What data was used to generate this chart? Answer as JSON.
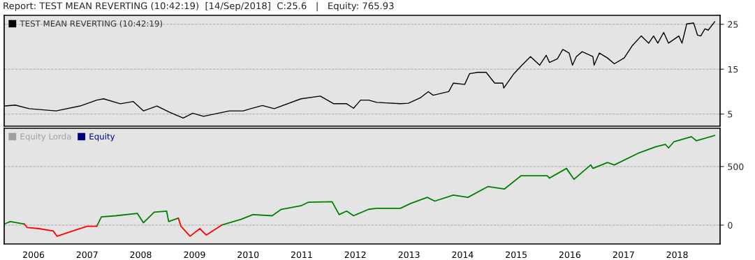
{
  "chart_data": [
    {
      "type": "line",
      "title": "Report: TEST MEAN REVERTING (10:42:19)  [14/Sep/2018]  C:25.6   |   Equity: 765.93",
      "xlim": [
        "2005-06-15",
        "2018-10-20"
      ],
      "ylim": [
        2.3,
        27.0
      ],
      "yticks": [
        5,
        15,
        25
      ],
      "grid": "y",
      "legend": "top left",
      "tick_labels": "y",
      "series": [
        {
          "name": "TEST MEAN REVERTING (10:42:19)",
          "color": "#000000",
          "x": [
            "2005-06-21",
            "2005-08-29",
            "2005-12-02",
            "2006-06-03",
            "2006-11-14",
            "2007-03-07",
            "2007-04-23",
            "2007-08-15",
            "2007-11-10",
            "2008-01-19",
            "2008-04-20",
            "2008-07-09",
            "2008-10-16",
            "2008-12-20",
            "2009-03-03",
            "2009-08-26",
            "2009-11-28",
            "2010-01-19",
            "2010-04-08",
            "2010-06-28",
            "2010-12-27",
            "2011-05-08",
            "2011-08-07",
            "2011-11-03",
            "2011-12-20",
            "2012-02-06",
            "2012-04-01",
            "2012-05-26",
            "2012-11-03",
            "2012-12-27",
            "2013-03-18",
            "2013-05-12",
            "2013-06-14",
            "2013-09-28",
            "2013-10-30",
            "2014-01-15",
            "2014-02-17",
            "2014-04-16",
            "2014-06-10",
            "2014-08-07",
            "2014-10-01",
            "2014-10-08",
            "2014-12-16",
            "2015-02-03",
            "2015-04-08",
            "2015-06-10",
            "2015-07-24",
            "2015-08-15",
            "2015-10-08",
            "2015-11-14",
            "2015-12-27",
            "2016-01-19",
            "2016-02-14",
            "2016-03-25",
            "2016-06-06",
            "2016-06-14",
            "2016-07-20",
            "2016-09-13",
            "2016-10-30",
            "2017-01-05",
            "2017-02-28",
            "2017-05-01",
            "2017-06-21",
            "2017-07-24",
            "2017-08-22",
            "2017-10-01",
            "2017-11-03",
            "2018-01-12",
            "2018-02-03",
            "2018-03-07",
            "2018-04-23",
            "2018-05-19",
            "2018-06-10",
            "2018-07-09",
            "2018-07-31",
            "2018-09-14"
          ],
          "values": [
            6.8,
            7.0,
            6.2,
            5.7,
            6.8,
            8.1,
            8.4,
            7.3,
            7.8,
            5.7,
            6.8,
            5.5,
            4.1,
            5.2,
            4.5,
            5.7,
            5.7,
            6.2,
            6.9,
            6.2,
            8.4,
            9.0,
            7.3,
            7.3,
            6.3,
            8.1,
            8.1,
            7.6,
            7.3,
            7.4,
            8.6,
            10.0,
            9.2,
            10.0,
            11.9,
            11.6,
            14.0,
            14.3,
            14.3,
            11.9,
            11.9,
            10.8,
            14.0,
            15.7,
            17.8,
            15.9,
            18.1,
            16.5,
            17.3,
            19.4,
            18.6,
            15.9,
            17.8,
            18.9,
            17.8,
            15.9,
            18.6,
            17.5,
            16.2,
            17.5,
            20.2,
            22.4,
            20.8,
            22.4,
            20.8,
            23.2,
            20.8,
            22.4,
            20.8,
            25.1,
            25.3,
            22.6,
            22.4,
            24.0,
            23.7,
            25.6
          ]
        }
      ]
    },
    {
      "type": "line",
      "xlim": [
        "2005-06-15",
        "2018-10-20"
      ],
      "ylim": [
        -161,
        827
      ],
      "yticks": [
        0,
        500
      ],
      "grid": "y",
      "legend": "top left",
      "xticks": [
        {
          "value": "2006-01-01",
          "label": "2006"
        },
        {
          "value": "2007-01-01",
          "label": "2007"
        },
        {
          "value": "2008-01-01",
          "label": "2008"
        },
        {
          "value": "2009-01-01",
          "label": "2009"
        },
        {
          "value": "2010-01-01",
          "label": "2010"
        },
        {
          "value": "2011-01-01",
          "label": "2011"
        },
        {
          "value": "2012-01-01",
          "label": "2012"
        },
        {
          "value": "2013-01-01",
          "label": "2013"
        },
        {
          "value": "2014-01-01",
          "label": "2014"
        },
        {
          "value": "2015-01-01",
          "label": "2015"
        },
        {
          "value": "2016-01-01",
          "label": "2016"
        },
        {
          "value": "2017-01-01",
          "label": "2017"
        },
        {
          "value": "2018-01-01",
          "label": "2018"
        }
      ],
      "x": [
        "2005-06-17",
        "2005-07-27",
        "2005-10-30",
        "2005-11-18",
        "2006-02-06",
        "2006-05-15",
        "2006-06-10",
        "2006-09-24",
        "2007-01-01",
        "2007-03-07",
        "2007-04-08",
        "2007-07-16",
        "2007-12-09",
        "2008-01-19",
        "2008-04-01",
        "2008-06-25",
        "2008-07-09",
        "2008-09-13",
        "2008-10-01",
        "2008-12-02",
        "2009-02-06",
        "2009-03-22",
        "2009-07-05",
        "2009-11-14",
        "2010-02-03",
        "2010-06-14",
        "2010-08-15",
        "2010-12-27",
        "2011-02-14",
        "2011-07-27",
        "2011-09-13",
        "2011-11-03",
        "2011-12-20",
        "2012-04-01",
        "2012-05-26",
        "2012-11-03",
        "2013-01-12",
        "2013-05-05",
        "2013-06-25",
        "2013-10-30",
        "2014-02-06",
        "2014-06-21",
        "2014-10-12",
        "2015-02-03",
        "2015-07-31",
        "2015-08-15",
        "2015-12-09",
        "2016-01-29",
        "2016-05-22",
        "2016-06-06",
        "2016-09-13",
        "2016-10-30",
        "2017-04-16",
        "2017-08-07",
        "2017-10-12",
        "2017-11-03",
        "2017-12-09",
        "2018-04-08",
        "2018-05-12",
        "2018-09-14"
      ],
      "series": [
        {
          "name": "Equity Lorda",
          "color": "#a0a0a0",
          "values": [
            null,
            null,
            null,
            null,
            null,
            null,
            null,
            null,
            null,
            null,
            null,
            null,
            null,
            null,
            null,
            null,
            null,
            null,
            null,
            null,
            null,
            null,
            null,
            null,
            null,
            null,
            null,
            null,
            null,
            null,
            null,
            null,
            null,
            null,
            null,
            null,
            null,
            null,
            null,
            null,
            null,
            null,
            null,
            null,
            null,
            null,
            null,
            null,
            null,
            null,
            null,
            null,
            null,
            null,
            null,
            null,
            null,
            null,
            null,
            null
          ]
        },
        {
          "name": "Equity",
          "color": "#000080",
          "values": [
            null,
            null,
            null,
            null,
            null,
            null,
            null,
            null,
            null,
            null,
            null,
            null,
            null,
            null,
            null,
            null,
            null,
            null,
            null,
            null,
            null,
            null,
            null,
            null,
            null,
            null,
            null,
            null,
            null,
            null,
            null,
            null,
            null,
            null,
            null,
            null,
            null,
            null,
            null,
            null,
            null,
            null,
            null,
            null,
            null,
            null,
            null,
            null,
            null,
            null,
            null,
            null,
            null,
            null,
            null,
            null,
            null,
            null,
            null,
            null
          ]
        },
        {
          "color": "#008000",
          "values": [
            10,
            30,
            10,
            null,
            null,
            null,
            null,
            null,
            null,
            -10,
            70,
            80,
            100,
            20,
            110,
            120,
            30,
            60,
            null,
            null,
            null,
            null,
            0,
            50,
            90,
            80,
            135,
            165,
            195,
            200,
            90,
            120,
            80,
            135,
            143,
            143,
            185,
            237,
            205,
            257,
            237,
            329,
            308,
            422,
            422,
            401,
            484,
            391,
            514,
            484,
            535,
            514,
            617,
            669,
            690,
            659,
            711,
            755,
            720,
            766
          ]
        },
        {
          "color": "#ff0000",
          "values": [
            null,
            null,
            10,
            -20,
            -30,
            -50,
            -95,
            -50,
            -10,
            -10,
            null,
            null,
            null,
            null,
            null,
            null,
            null,
            60,
            -10,
            -95,
            -30,
            -85,
            0,
            null,
            null,
            null,
            null,
            null,
            null,
            null,
            null,
            null,
            null,
            null,
            null,
            null,
            null,
            null,
            null,
            null,
            null,
            null,
            null,
            null,
            null,
            null,
            null,
            null,
            null,
            null,
            null,
            null,
            null,
            null,
            null,
            null,
            null,
            null,
            null,
            null
          ]
        }
      ]
    }
  ]
}
